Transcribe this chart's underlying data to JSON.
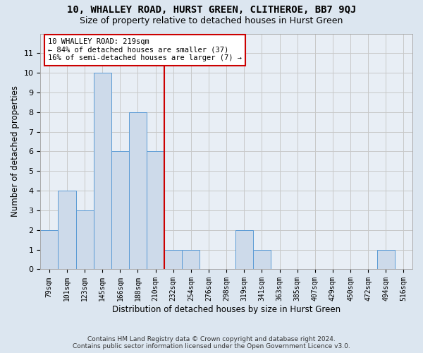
{
  "title": "10, WHALLEY ROAD, HURST GREEN, CLITHEROE, BB7 9QJ",
  "subtitle": "Size of property relative to detached houses in Hurst Green",
  "xlabel": "Distribution of detached houses by size in Hurst Green",
  "ylabel": "Number of detached properties",
  "footer_line1": "Contains HM Land Registry data © Crown copyright and database right 2024.",
  "footer_line2": "Contains public sector information licensed under the Open Government Licence v3.0.",
  "bin_labels": [
    "79sqm",
    "101sqm",
    "123sqm",
    "145sqm",
    "166sqm",
    "188sqm",
    "210sqm",
    "232sqm",
    "254sqm",
    "276sqm",
    "298sqm",
    "319sqm",
    "341sqm",
    "363sqm",
    "385sqm",
    "407sqm",
    "429sqm",
    "450sqm",
    "472sqm",
    "494sqm",
    "516sqm"
  ],
  "bar_heights": [
    2,
    4,
    3,
    10,
    6,
    8,
    6,
    1,
    1,
    0,
    0,
    2,
    1,
    0,
    0,
    0,
    0,
    0,
    0,
    1,
    0
  ],
  "bar_color": "#cddaea",
  "bar_edge_color": "#5b9bd5",
  "vline_color": "#cc0000",
  "annotation_text": "10 WHALLEY ROAD: 219sqm\n← 84% of detached houses are smaller (37)\n16% of semi-detached houses are larger (7) →",
  "annotation_box_color": "white",
  "annotation_box_edge_color": "#cc0000",
  "ylim": [
    0,
    12
  ],
  "yticks": [
    0,
    1,
    2,
    3,
    4,
    5,
    6,
    7,
    8,
    9,
    10,
    11
  ],
  "grid_color": "#c8c8c8",
  "bg_color": "#dce6f0",
  "plot_bg_color": "#e8eef5",
  "title_fontsize": 10,
  "subtitle_fontsize": 9,
  "tick_fontsize": 7,
  "ylabel_fontsize": 8.5,
  "xlabel_fontsize": 8.5,
  "footer_fontsize": 6.5
}
